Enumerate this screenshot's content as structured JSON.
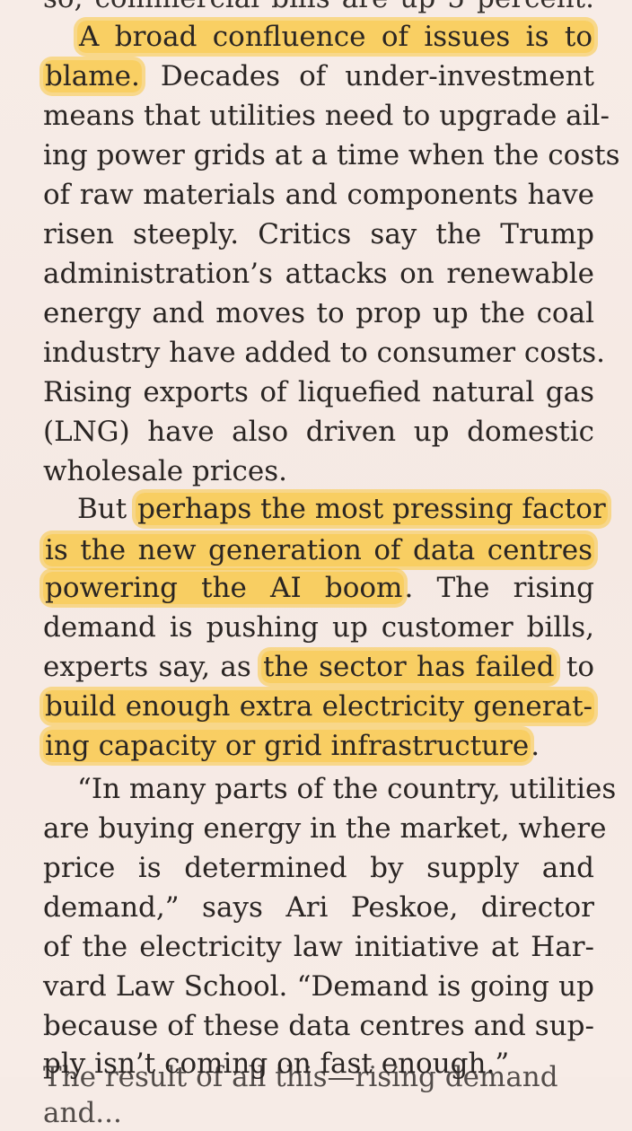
{
  "article": {
    "top_partial": "so, commercial bills are up 5 percent.",
    "lines": [
      {
        "segments": [
          {
            "text": "A broad confluence of issues is to",
            "highlight": true
          }
        ],
        "indent": true,
        "justify": true
      },
      {
        "segments": [
          {
            "text": "blame.",
            "highlight": true
          },
          {
            "text": " Decades of under-investment",
            "highlight": false
          }
        ],
        "indent": false,
        "justify": true
      },
      {
        "segments": [
          {
            "text": "means that utilities need to upgrade ail-",
            "highlight": false
          }
        ],
        "indent": false,
        "justify": true
      },
      {
        "segments": [
          {
            "text": "ing power grids at a time when the costs",
            "highlight": false
          }
        ],
        "indent": false,
        "justify": true
      },
      {
        "segments": [
          {
            "text": "of raw materials and components have",
            "highlight": false
          }
        ],
        "indent": false,
        "justify": true
      },
      {
        "segments": [
          {
            "text": "risen steeply. Critics say the Trump",
            "highlight": false
          }
        ],
        "indent": false,
        "justify": true
      },
      {
        "segments": [
          {
            "text": "administration’s attacks on renewable",
            "highlight": false
          }
        ],
        "indent": false,
        "justify": true
      },
      {
        "segments": [
          {
            "text": "energy and moves to prop up the coal",
            "highlight": false
          }
        ],
        "indent": false,
        "justify": true
      },
      {
        "segments": [
          {
            "text": "industry have added to consumer costs.",
            "highlight": false
          }
        ],
        "indent": false,
        "justify": true
      },
      {
        "segments": [
          {
            "text": "Rising exports of liquefied natural gas",
            "highlight": false
          }
        ],
        "indent": false,
        "justify": true
      },
      {
        "segments": [
          {
            "text": "(LNG) have also driven up domestic",
            "highlight": false
          }
        ],
        "indent": false,
        "justify": true
      },
      {
        "segments": [
          {
            "text": "wholesale prices.",
            "highlight": false
          }
        ],
        "indent": false,
        "justify": false
      },
      {
        "segments": [
          {
            "text": "But ",
            "highlight": false
          },
          {
            "text": "perhaps the most pressing factor",
            "highlight": true
          }
        ],
        "indent": true,
        "justify": true
      },
      {
        "segments": [
          {
            "text": "is the new generation of data centres",
            "highlight": true
          }
        ],
        "indent": false,
        "justify": true
      },
      {
        "segments": [
          {
            "text": "powering the AI boom",
            "highlight": true
          },
          {
            "text": ". The rising",
            "highlight": false
          }
        ],
        "indent": false,
        "justify": true
      },
      {
        "segments": [
          {
            "text": "demand is pushing up customer bills,",
            "highlight": false
          }
        ],
        "indent": false,
        "justify": true
      },
      {
        "segments": [
          {
            "text": "experts say, as ",
            "highlight": false
          },
          {
            "text": "the sector has failed",
            "highlight": true
          },
          {
            "text": " to",
            "highlight": false
          }
        ],
        "indent": false,
        "justify": true
      },
      {
        "segments": [
          {
            "text": "build enough extra electricity generat-",
            "highlight": true
          }
        ],
        "indent": false,
        "justify": true
      },
      {
        "segments": [
          {
            "text": "ing capacity or grid infrastructure",
            "highlight": true
          },
          {
            "text": ".",
            "highlight": false
          }
        ],
        "indent": false,
        "justify": false
      },
      {
        "segments": [
          {
            "text": "“In many parts of the country, utilities",
            "highlight": false
          }
        ],
        "indent": true,
        "justify": true
      },
      {
        "segments": [
          {
            "text": "are buying energy in the market, where",
            "highlight": false
          }
        ],
        "indent": false,
        "justify": true
      },
      {
        "segments": [
          {
            "text": "price is determined by supply and",
            "highlight": false
          }
        ],
        "indent": false,
        "justify": true
      },
      {
        "segments": [
          {
            "text": "demand,” says Ari Peskoe, director",
            "highlight": false
          }
        ],
        "indent": false,
        "justify": true
      },
      {
        "segments": [
          {
            "text": "of the electricity law initiative at Har-",
            "highlight": false
          }
        ],
        "indent": false,
        "justify": true
      },
      {
        "segments": [
          {
            "text": "vard Law School. “Demand is going up",
            "highlight": false
          }
        ],
        "indent": false,
        "justify": true
      },
      {
        "segments": [
          {
            "text": "because of these data centres and sup-",
            "highlight": false
          }
        ],
        "indent": false,
        "justify": true
      },
      {
        "segments": [
          {
            "text": "ply isn’t coming on fast enough.”",
            "highlight": false
          }
        ],
        "indent": false,
        "justify": false
      }
    ],
    "bottom_partial": "The result of all this—rising demand and..."
  },
  "colors": {
    "background": "#f6ebe6",
    "text": "#2a2523",
    "highlight": "#fac430"
  }
}
